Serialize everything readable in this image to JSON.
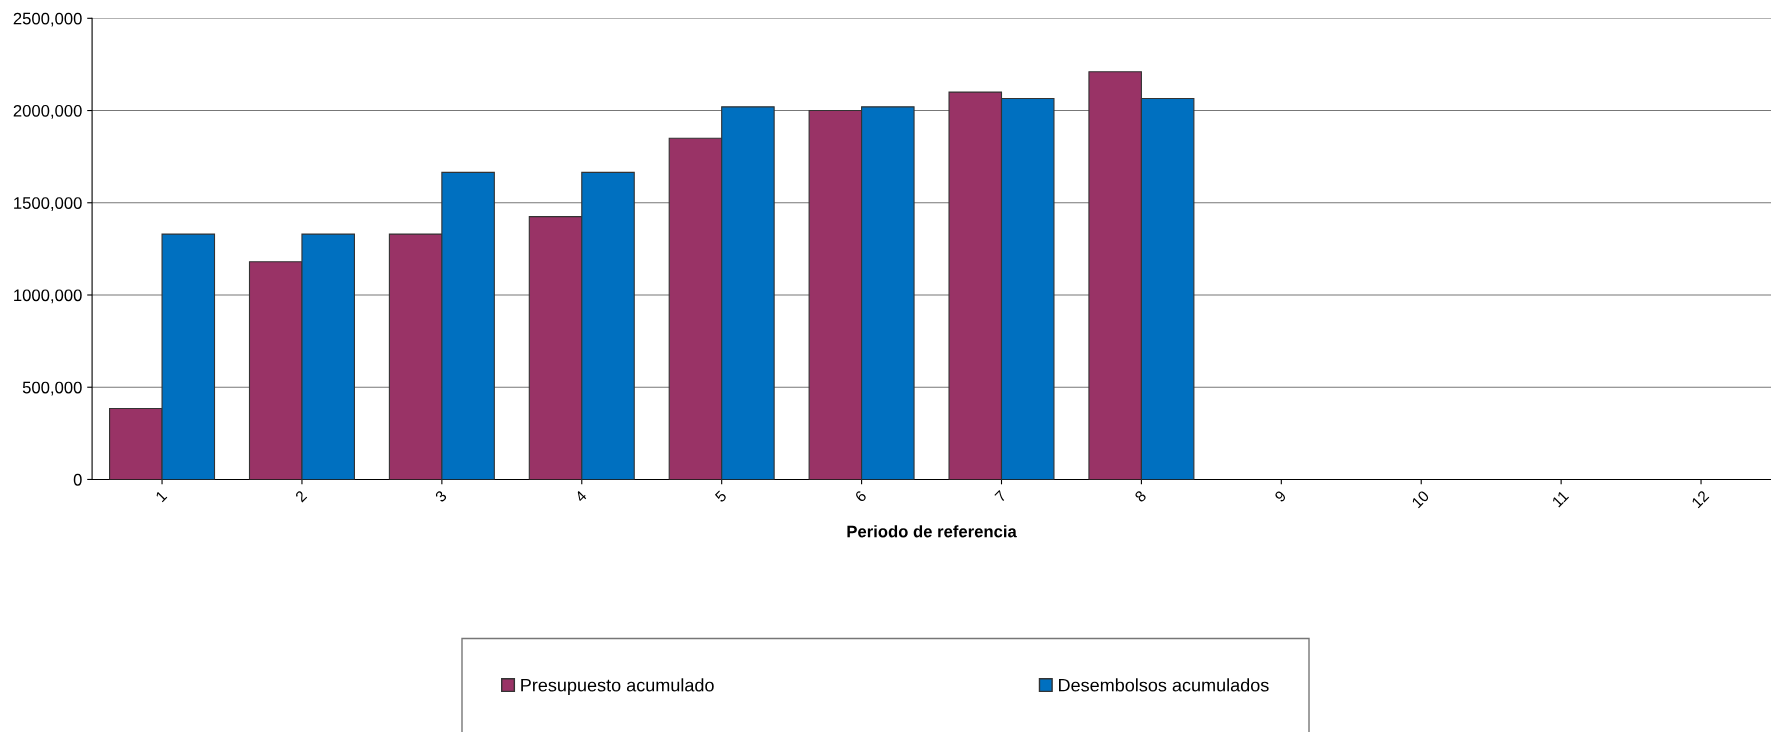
{
  "chart_data": {
    "type": "bar",
    "xlabel": "Periodo de referencia",
    "categories": [
      "1",
      "2",
      "3",
      "4",
      "5",
      "6",
      "7",
      "8",
      "9",
      "10",
      "11",
      "12"
    ],
    "series": [
      {
        "name": "Presupuesto acumulado",
        "color": "#993366",
        "values": [
          385000,
          1180000,
          1330000,
          1425000,
          1850000,
          2000000,
          2100000,
          2210000,
          null,
          null,
          null,
          null
        ]
      },
      {
        "name": "Desembolsos acumulados",
        "color": "#0070c0",
        "values": [
          1330000,
          1330000,
          1665000,
          1665000,
          2020000,
          2020000,
          2065000,
          2065000,
          null,
          null,
          null,
          null
        ]
      }
    ],
    "ylim": [
      0,
      2500000
    ],
    "yticks": [
      {
        "value": 0,
        "label": "0"
      },
      {
        "value": 500000,
        "label": "500,000"
      },
      {
        "value": 1000000,
        "label": "1000,000"
      },
      {
        "value": 1500000,
        "label": "1500,000"
      },
      {
        "value": 2000000,
        "label": "2000,000"
      },
      {
        "value": 2500000,
        "label": "2500,000"
      }
    ],
    "grid": "y",
    "legend": "bottom"
  }
}
